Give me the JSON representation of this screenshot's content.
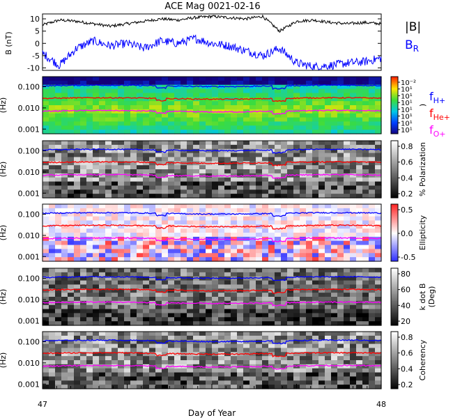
{
  "chart_data": [
    {
      "type": "line",
      "title": "ACE Mag 0021-02-16",
      "ylabel": "B (nT)",
      "ylim": [
        -11,
        12
      ],
      "yticks": [
        "10",
        "5",
        "0",
        "-5",
        "-10"
      ],
      "x": [
        47.0,
        47.05,
        47.1,
        47.15,
        47.2,
        47.25,
        47.3,
        47.35,
        47.4,
        47.45,
        47.5,
        47.55,
        47.6,
        47.65,
        47.7,
        47.75,
        47.8,
        47.85,
        47.9,
        47.95,
        48.0
      ],
      "series": [
        {
          "name": "|B|",
          "color": "#000000",
          "values": [
            7.5,
            9.5,
            9.0,
            8.0,
            7.0,
            8.0,
            9.0,
            10.0,
            9.5,
            10.5,
            11.0,
            10.5,
            10.0,
            11.0,
            5.0,
            9.0,
            9.5,
            8.5,
            8.0,
            8.5,
            8.0
          ]
        },
        {
          "name": "B_R",
          "color": "#0000ff",
          "values": [
            -4.0,
            -9.0,
            -2.0,
            1.0,
            -1.0,
            0.0,
            -2.0,
            1.0,
            0.0,
            2.0,
            0.0,
            -1.0,
            -3.0,
            -5.0,
            -2.0,
            -8.0,
            -9.5,
            -9.0,
            -8.0,
            -7.5,
            -6.0
          ]
        }
      ]
    },
    {
      "type": "heatmap",
      "panel": "power",
      "ylabel": "(Hz)",
      "yscale": "log",
      "yticks": [
        "0.100",
        "0.010",
        "0.001"
      ],
      "colorbar_ticks": [
        "10⁻²",
        "10¹",
        "10¹",
        "10¹",
        "10¹",
        "10¹",
        "10¹",
        "10¹"
      ],
      "colorbar_label": ")",
      "series": [
        {
          "name": "f_H+",
          "color": "#0000ff",
          "level": 0.11
        },
        {
          "name": "f_He+",
          "color": "#ff0000",
          "level": 0.028
        },
        {
          "name": "f_O+",
          "color": "#ff00ff",
          "level": 0.007
        }
      ]
    },
    {
      "type": "heatmap",
      "panel": "polarization",
      "ylabel": "(Hz)",
      "yscale": "log",
      "yticks": [
        "0.100",
        "0.010",
        "0.001"
      ],
      "colorbar_ticks": [
        "0.8",
        "0.6",
        "0.4",
        "0.2"
      ],
      "colorbar_label": "% Polarization"
    },
    {
      "type": "heatmap",
      "panel": "ellipticity",
      "ylabel": "(Hz)",
      "yscale": "log",
      "yticks": [
        "0.100",
        "0.010",
        "0.001"
      ],
      "colorbar_ticks": [
        "0.5",
        "0.0",
        "-0.5"
      ],
      "colorbar_label": "Ellipticity"
    },
    {
      "type": "heatmap",
      "panel": "kdotb",
      "ylabel": "(Hz)",
      "yscale": "log",
      "yticks": [
        "0.100",
        "0.010",
        "0.001"
      ],
      "colorbar_ticks": [
        "80",
        "60",
        "40",
        "20"
      ],
      "colorbar_label": "k dot B",
      "colorbar_unit": "(Deg)"
    },
    {
      "type": "heatmap",
      "panel": "coherency",
      "ylabel": "(Hz)",
      "yscale": "log",
      "yticks": [
        "0.100",
        "0.010",
        "0.001"
      ],
      "colorbar_ticks": [
        "0.8",
        "0.6",
        "0.4",
        "0.2"
      ],
      "colorbar_label": "Coherency"
    }
  ],
  "legend": {
    "b_mag": "|B|",
    "b_r_main": "B",
    "b_r_sub": "R",
    "h_main": "f",
    "h_sub": "H+",
    "he_main": "f",
    "he_sub": "He+",
    "o_main": "f",
    "o_sub": "O+"
  },
  "xaxis": {
    "label": "Day of Year",
    "start_label": "47",
    "end_label": "48",
    "range": [
      47,
      48
    ]
  },
  "colors": {
    "h": "#0000ff",
    "he": "#ff0000",
    "o": "#ff00ff",
    "b": "#000000"
  }
}
